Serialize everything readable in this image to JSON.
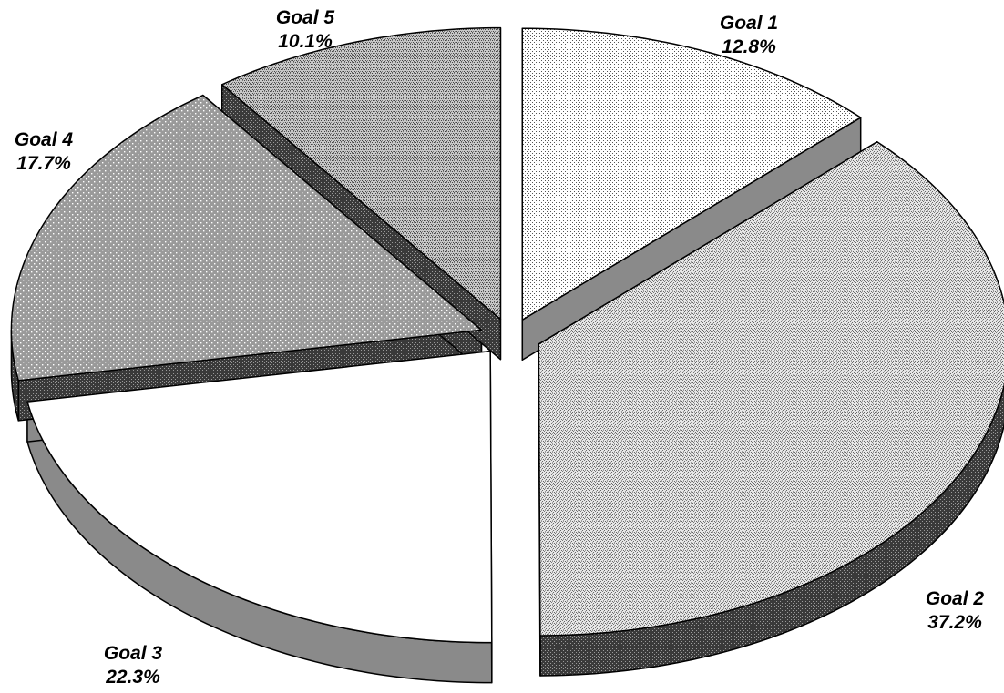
{
  "chart_data": {
    "type": "pie",
    "style": "3d-exploded",
    "title": "",
    "legend": "none",
    "slices": [
      {
        "label": "Goal 1",
        "percent_label": "12.8%",
        "value": 12.8,
        "pattern": "fine-dots",
        "face_color": "#f2f2f2",
        "side_color": "#8c8c8c"
      },
      {
        "label": "Goal 2",
        "percent_label": "37.2%",
        "value": 37.2,
        "pattern": "crosshatch",
        "face_color": "#d0d0d0",
        "side_color": "#4d4d4d"
      },
      {
        "label": "Goal 3",
        "percent_label": "22.3%",
        "value": 22.3,
        "pattern": "solid",
        "face_color": "#ffffff",
        "side_color": "#808080"
      },
      {
        "label": "Goal 4",
        "percent_label": "17.7%",
        "value": 17.7,
        "pattern": "dots",
        "face_color": "#9c9c9c",
        "side_color": "#2e2e2e"
      },
      {
        "label": "Goal 5",
        "percent_label": "10.1%",
        "value": 10.1,
        "pattern": "crosshatch-dark",
        "face_color": "#bdbdbd",
        "side_color": "#3a3a3a"
      }
    ]
  }
}
